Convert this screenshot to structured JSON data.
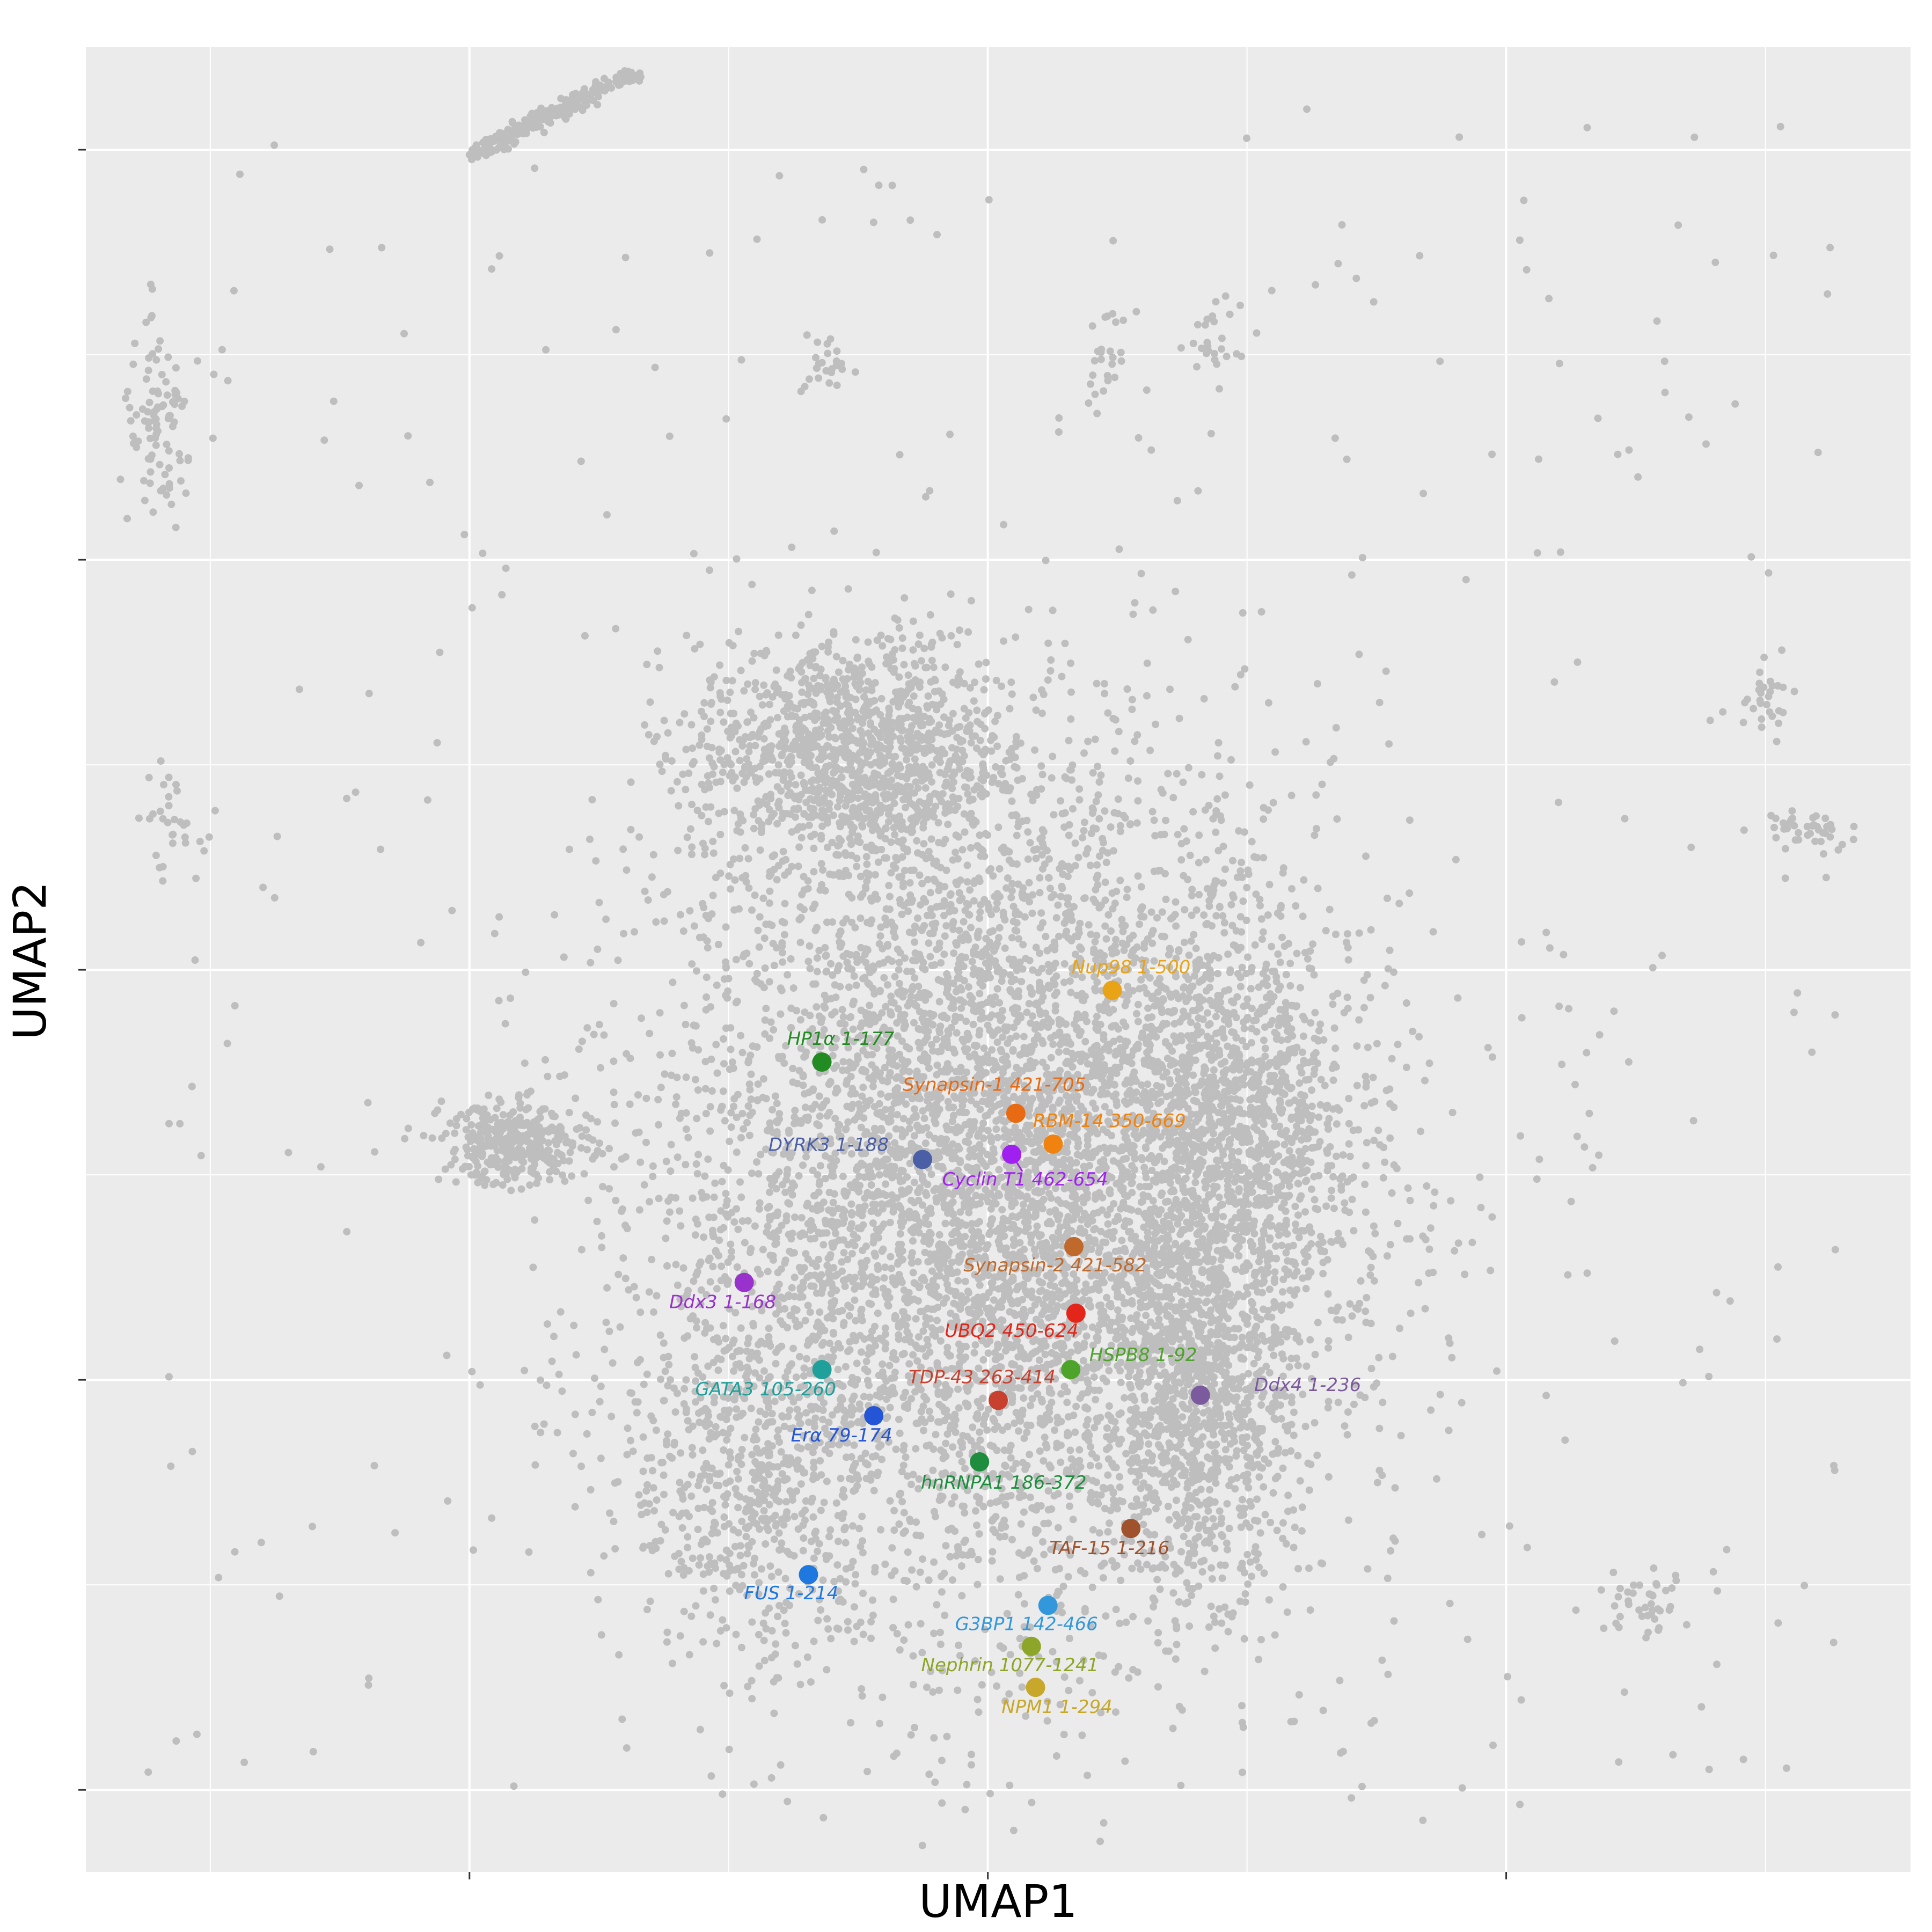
{
  "chart_data": {
    "type": "scatter",
    "title": "",
    "xlabel": "UMAP1",
    "ylabel": "UMAP2",
    "xlim": [
      -8.7,
      8.9
    ],
    "ylim": [
      -8.8,
      9.0
    ],
    "x_major_ticks": [
      -5,
      0,
      5
    ],
    "y_major_ticks": [
      -8,
      -4,
      0,
      4,
      8
    ],
    "x_minor_gridlines": [
      -7.5,
      -2.5,
      2.5,
      7.5
    ],
    "y_minor_gridlines": [
      -6,
      -2,
      2,
      6
    ],
    "tick_labels_shown": false,
    "grid": true,
    "legend": "none",
    "colors": {
      "panel": "#EBEBEB",
      "grid": "#FFFFFF",
      "background_points": "#BEBEBE"
    },
    "background_points_note": "thousands of grey UMAP-embedded points; dense central cloud around UMAP1 0, UMAP2 -2 plus sparse outlying filaments",
    "highlighted": [
      {
        "label": "Nup98 1-500",
        "x": 1.2,
        "y": -0.2,
        "color": "#E8A317"
      },
      {
        "label": "HP1α 1-177",
        "x": -1.6,
        "y": -0.9,
        "color": "#228B22"
      },
      {
        "label": "Synapsin-1 421-705",
        "x": 0.27,
        "y": -1.4,
        "color": "#E86A12"
      },
      {
        "label": "RBM-14 350-669",
        "x": 0.63,
        "y": -1.7,
        "color": "#F0820F"
      },
      {
        "label": "DYRK3 1-188",
        "x": -0.63,
        "y": -1.85,
        "color": "#4B5FA6"
      },
      {
        "label": "Cyclin T1 462-654",
        "x": 0.23,
        "y": -1.8,
        "color": "#A020F0"
      },
      {
        "label": "Synapsin-2 421-582",
        "x": 0.83,
        "y": -2.7,
        "color": "#C0692D"
      },
      {
        "label": "Ddx3 1-168",
        "x": -2.35,
        "y": -3.05,
        "color": "#9932CC"
      },
      {
        "label": "UBQ2 450-624",
        "x": 0.85,
        "y": -3.35,
        "color": "#E32619"
      },
      {
        "label": "GATA3 105-260",
        "x": -1.6,
        "y": -3.9,
        "color": "#20A09A"
      },
      {
        "label": "HSPB8 1-92",
        "x": 0.8,
        "y": -3.9,
        "color": "#4EA32A"
      },
      {
        "label": "Ddx4 1-236",
        "x": 2.05,
        "y": -4.15,
        "color": "#7B5A9E"
      },
      {
        "label": "TDP-43 263-414",
        "x": 0.1,
        "y": -4.2,
        "color": "#C8412F"
      },
      {
        "label": "Erα 79-174",
        "x": -1.1,
        "y": -4.35,
        "color": "#2355D6"
      },
      {
        "label": "hnRNPA1 186-372",
        "x": -0.08,
        "y": -4.8,
        "color": "#1E8E3E"
      },
      {
        "label": "TAF-15 1-216",
        "x": 1.38,
        "y": -5.45,
        "color": "#A0522D"
      },
      {
        "label": "FUS 1-214",
        "x": -1.73,
        "y": -5.9,
        "color": "#1F77E0"
      },
      {
        "label": "G3BP1 142-466",
        "x": 0.58,
        "y": -6.2,
        "color": "#3398DB"
      },
      {
        "label": "Nephrin 1077-1241",
        "x": 0.42,
        "y": -6.6,
        "color": "#8DA629"
      },
      {
        "label": "NPM1 1-294",
        "x": 0.46,
        "y": -7.0,
        "color": "#C8A82A"
      }
    ]
  }
}
